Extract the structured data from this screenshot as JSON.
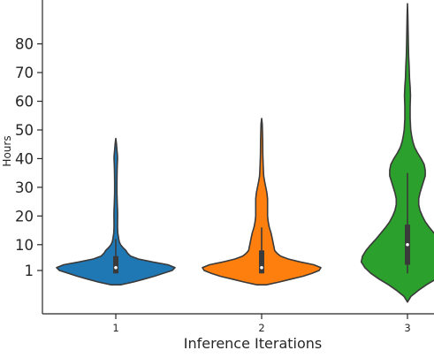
{
  "chart_data": {
    "type": "violin",
    "title": "",
    "xlabel": "Inference Iterations",
    "ylabel": "Hours",
    "categories": [
      "1",
      "2",
      "3"
    ],
    "yticks": [
      "1",
      "10",
      "20",
      "30",
      "40",
      "50",
      "60",
      "70",
      "80"
    ],
    "ylim": [
      -13,
      91
    ],
    "grid": false,
    "series": [
      {
        "category": "1",
        "color": "#1f77b4",
        "min": -4,
        "max": 47,
        "whisker_low": 0,
        "q1": 0,
        "median": 2,
        "q3": 6,
        "whisker_high": 12,
        "density": [
          [
            -4,
            0.08
          ],
          [
            -3,
            0.3
          ],
          [
            -2,
            0.48
          ],
          [
            -1,
            0.65
          ],
          [
            0,
            0.8
          ],
          [
            1,
            0.95
          ],
          [
            2,
            1.0
          ],
          [
            3,
            0.88
          ],
          [
            4,
            0.62
          ],
          [
            5,
            0.38
          ],
          [
            6,
            0.25
          ],
          [
            7,
            0.2
          ],
          [
            8,
            0.17
          ],
          [
            9,
            0.12
          ],
          [
            10,
            0.08
          ],
          [
            11,
            0.06
          ],
          [
            12,
            0.05
          ],
          [
            14,
            0.035
          ],
          [
            16,
            0.03
          ],
          [
            18,
            0.03
          ],
          [
            20,
            0.032
          ],
          [
            22,
            0.03
          ],
          [
            24,
            0.025
          ],
          [
            28,
            0.02
          ],
          [
            32,
            0.02
          ],
          [
            36,
            0.022
          ],
          [
            38,
            0.026
          ],
          [
            40,
            0.03
          ],
          [
            41,
            0.028
          ],
          [
            43,
            0.02
          ],
          [
            45,
            0.012
          ],
          [
            47,
            0.0
          ]
        ]
      },
      {
        "category": "2",
        "color": "#ff7f0e",
        "min": -4,
        "max": 54,
        "whisker_low": 0,
        "q1": 0,
        "median": 2,
        "q3": 8,
        "whisker_high": 16,
        "density": [
          [
            -4,
            0.08
          ],
          [
            -3,
            0.3
          ],
          [
            -2,
            0.5
          ],
          [
            -1,
            0.7
          ],
          [
            0,
            0.85
          ],
          [
            1,
            0.97
          ],
          [
            2,
            1.0
          ],
          [
            3,
            0.88
          ],
          [
            4,
            0.65
          ],
          [
            5,
            0.45
          ],
          [
            6,
            0.32
          ],
          [
            7,
            0.26
          ],
          [
            8,
            0.22
          ],
          [
            9,
            0.21
          ],
          [
            10,
            0.2
          ],
          [
            12,
            0.18
          ],
          [
            14,
            0.16
          ],
          [
            16,
            0.13
          ],
          [
            18,
            0.11
          ],
          [
            20,
            0.1
          ],
          [
            22,
            0.1
          ],
          [
            24,
            0.1
          ],
          [
            26,
            0.1
          ],
          [
            28,
            0.09
          ],
          [
            30,
            0.07
          ],
          [
            32,
            0.05
          ],
          [
            34,
            0.035
          ],
          [
            38,
            0.025
          ],
          [
            42,
            0.02
          ],
          [
            46,
            0.018
          ],
          [
            50,
            0.014
          ],
          [
            52,
            0.01
          ],
          [
            54,
            0.0
          ]
        ]
      },
      {
        "category": "3",
        "color": "#2ca02c",
        "min": -10,
        "max": 94,
        "whisker_low": 0,
        "q1": 3,
        "median": 10,
        "q3": 17,
        "whisker_high": 35,
        "density": [
          [
            -10,
            0.0
          ],
          [
            -8,
            0.06
          ],
          [
            -6,
            0.18
          ],
          [
            -4,
            0.32
          ],
          [
            -2,
            0.48
          ],
          [
            0,
            0.62
          ],
          [
            2,
            0.72
          ],
          [
            4,
            0.78
          ],
          [
            6,
            0.76
          ],
          [
            8,
            0.7
          ],
          [
            10,
            0.62
          ],
          [
            12,
            0.53
          ],
          [
            14,
            0.45
          ],
          [
            16,
            0.37
          ],
          [
            18,
            0.3
          ],
          [
            20,
            0.25
          ],
          [
            22,
            0.21
          ],
          [
            24,
            0.19
          ],
          [
            26,
            0.19
          ],
          [
            28,
            0.21
          ],
          [
            30,
            0.24
          ],
          [
            32,
            0.27
          ],
          [
            34,
            0.3
          ],
          [
            36,
            0.3
          ],
          [
            38,
            0.28
          ],
          [
            40,
            0.23
          ],
          [
            42,
            0.17
          ],
          [
            44,
            0.12
          ],
          [
            46,
            0.09
          ],
          [
            48,
            0.07
          ],
          [
            50,
            0.055
          ],
          [
            54,
            0.045
          ],
          [
            58,
            0.045
          ],
          [
            62,
            0.05
          ],
          [
            65,
            0.045
          ],
          [
            68,
            0.035
          ],
          [
            72,
            0.028
          ],
          [
            76,
            0.02
          ],
          [
            80,
            0.015
          ],
          [
            85,
            0.01
          ],
          [
            90,
            0.006
          ],
          [
            94,
            0.0
          ]
        ]
      }
    ]
  }
}
